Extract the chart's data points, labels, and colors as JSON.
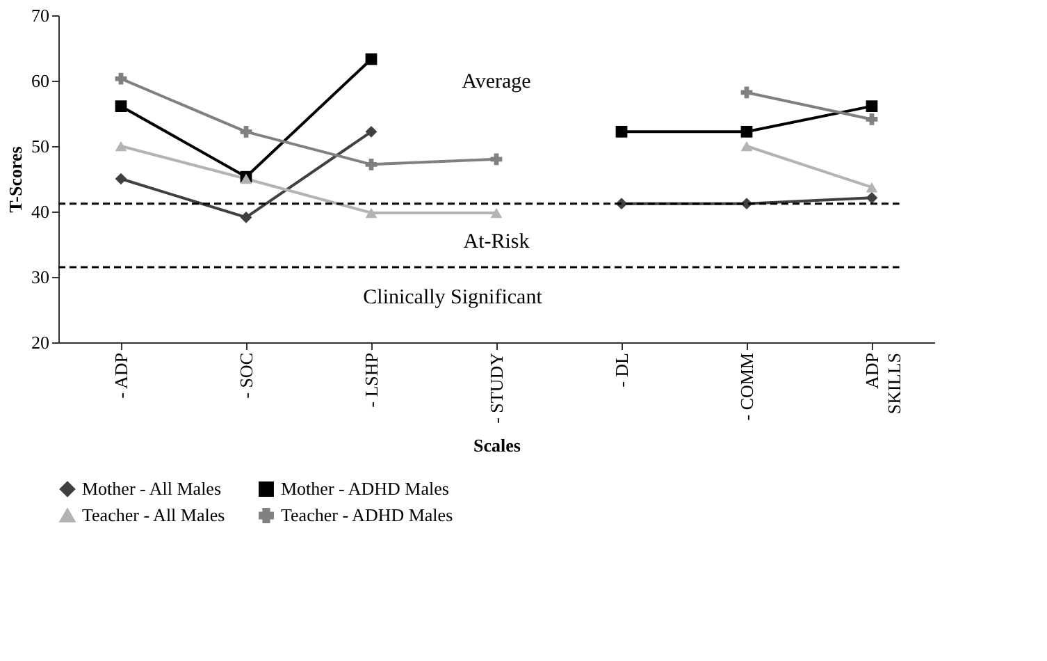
{
  "chart_data": {
    "type": "line",
    "xlabel": "Scales",
    "ylabel": "T-Scores",
    "categories": [
      "- ADP",
      "- SOC",
      "- LSHP",
      "- STUDY",
      "- DL",
      "- COMM",
      "ADP\nSKILLS"
    ],
    "series": [
      {
        "name": "Mother - All Males",
        "color": "#404040",
        "marker": "diamond",
        "values": [
          45,
          39.1,
          52.2,
          null,
          41.2,
          41.2,
          42.1
        ]
      },
      {
        "name": "Mother - ADHD Males",
        "color": "#000000",
        "marker": "square",
        "values": [
          56.1,
          45.3,
          63.3,
          null,
          52.2,
          52.2,
          56.1
        ]
      },
      {
        "name": "Teacher - All Males",
        "color": "#b3b3b3",
        "marker": "triangle",
        "values": [
          50,
          45,
          39.8,
          39.8,
          null,
          50,
          43.7
        ]
      },
      {
        "name": "Teacher - ADHD Males",
        "color": "#808080",
        "marker": "cross",
        "values": [
          60.3,
          52.2,
          47.2,
          48,
          null,
          58.2,
          54.1
        ]
      }
    ],
    "ylim": [
      20,
      70
    ],
    "yticks": [
      20,
      30,
      40,
      50,
      60,
      70
    ],
    "grid": false,
    "legend": "bottom",
    "line_style": "solid",
    "ref_lines": [
      {
        "axis": "y",
        "value": 41.2,
        "color": "#000000",
        "line_style": "dashed"
      },
      {
        "axis": "y",
        "value": 31.5,
        "color": "#000000",
        "line_style": "dashed"
      }
    ],
    "annotations": [
      "Average",
      "At-Risk",
      "Clinically Significant"
    ]
  }
}
